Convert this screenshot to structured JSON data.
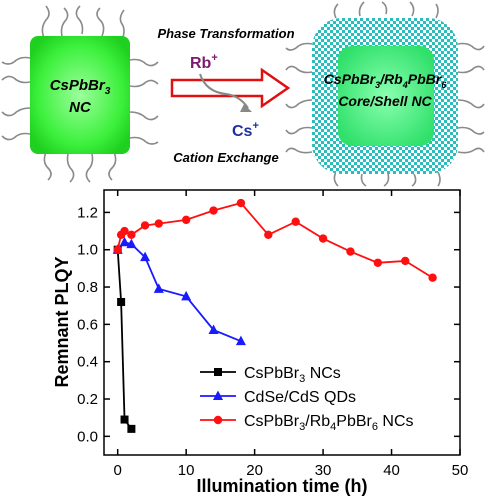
{
  "schematic": {
    "left_label_line1": "CsPbBr",
    "left_label_sub1": "3",
    "left_label_line2": "NC",
    "top_caption": "Phase Transformation",
    "bottom_caption": "Cation Exchange",
    "ion_in": "Rb",
    "ion_in_charge": "+",
    "ion_out": "Cs",
    "ion_out_charge": "+",
    "right_label_a": "CsPbBr",
    "right_label_a_sub": "3",
    "right_label_sep": "/Rb",
    "right_label_b_sub": "4",
    "right_label_c": "PbBr",
    "right_label_c_sub": "6",
    "right_label_line2": "Core/Shell NC",
    "core_color": "#3cf03c",
    "shell_color": "#1fb8b8",
    "ion_in_color": "#7b1a6e",
    "ion_out_color": "#1f2fa0",
    "arrow_color": "#e01010"
  },
  "chart_data": {
    "type": "line",
    "xlabel": "Illumination time (h)",
    "ylabel": "Remnant PLQY",
    "xlim": [
      -2,
      50
    ],
    "ylim": [
      -0.1,
      1.32
    ],
    "xticks": [
      0,
      10,
      20,
      30,
      40,
      50
    ],
    "yticks": [
      0.0,
      0.2,
      0.4,
      0.6,
      0.8,
      1.0,
      1.2
    ],
    "ytick_labels": [
      "0.0",
      "0.2",
      "0.4",
      "0.6",
      "0.8",
      "1.0",
      "1.2"
    ],
    "legend_placement": "bottom-right",
    "series": [
      {
        "name_main": "CsPbBr",
        "name_sub": "3",
        "name_tail": " NCs",
        "color": "#000000",
        "marker": "square",
        "x": [
          0,
          0.5,
          1,
          2
        ],
        "y": [
          1.0,
          0.72,
          0.09,
          0.04
        ]
      },
      {
        "name_main": "CdSe/CdS QDs",
        "name_sub": "",
        "name_tail": "",
        "color": "#1a1aff",
        "marker": "triangle",
        "x": [
          0,
          1,
          2,
          4,
          6,
          10,
          14,
          18
        ],
        "y": [
          1.0,
          1.04,
          1.03,
          0.96,
          0.79,
          0.75,
          0.57,
          0.51
        ]
      },
      {
        "name_main": "CsPbBr",
        "name_sub": "3",
        "name_tail": "/Rb",
        "name_sub2": "4",
        "name_tail2": "PbBr",
        "name_sub3": "6",
        "name_tail3": " NCs",
        "color": "#ff1010",
        "marker": "circle",
        "x": [
          0,
          0.5,
          1,
          2,
          4,
          6,
          10,
          14,
          18,
          22,
          26,
          30,
          34,
          38,
          42,
          46
        ],
        "y": [
          1.0,
          1.08,
          1.1,
          1.08,
          1.13,
          1.14,
          1.16,
          1.21,
          1.25,
          1.08,
          1.15,
          1.06,
          0.99,
          0.93,
          0.94,
          0.85
        ]
      }
    ]
  }
}
